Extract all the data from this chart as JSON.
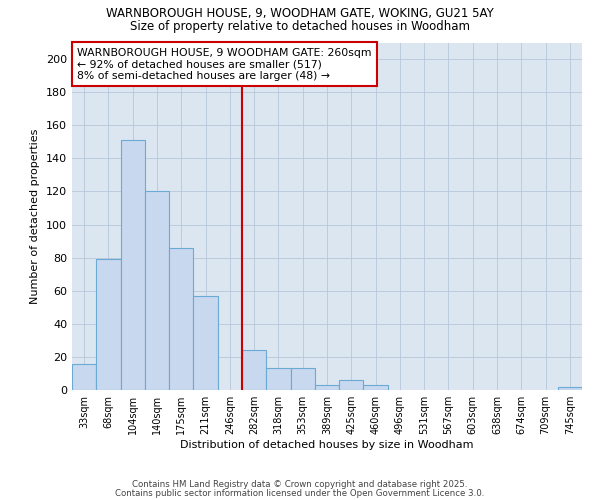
{
  "title_line1": "WARNBOROUGH HOUSE, 9, WOODHAM GATE, WOKING, GU21 5AY",
  "title_line2": "Size of property relative to detached houses in Woodham",
  "xlabel": "Distribution of detached houses by size in Woodham",
  "ylabel": "Number of detached properties",
  "bar_color": "#c8d8ee",
  "bar_edgecolor": "#6aaad4",
  "background_color": "#dce6f1",
  "bins": [
    "33sqm",
    "68sqm",
    "104sqm",
    "140sqm",
    "175sqm",
    "211sqm",
    "246sqm",
    "282sqm",
    "318sqm",
    "353sqm",
    "389sqm",
    "425sqm",
    "460sqm",
    "496sqm",
    "531sqm",
    "567sqm",
    "603sqm",
    "638sqm",
    "674sqm",
    "709sqm",
    "745sqm"
  ],
  "values": [
    16,
    79,
    151,
    120,
    86,
    57,
    0,
    24,
    13,
    13,
    3,
    6,
    3,
    0,
    0,
    0,
    0,
    0,
    0,
    0,
    2
  ],
  "red_line_color": "#cc0000",
  "annotation_text": "WARNBOROUGH HOUSE, 9 WOODHAM GATE: 260sqm\n← 92% of detached houses are smaller (517)\n8% of semi-detached houses are larger (48) →",
  "annotation_box_color": "#ffffff",
  "annotation_box_edgecolor": "#cc0000",
  "ylim": [
    0,
    210
  ],
  "yticks": [
    0,
    20,
    40,
    60,
    80,
    100,
    120,
    140,
    160,
    180,
    200
  ],
  "footer_line1": "Contains HM Land Registry data © Crown copyright and database right 2025.",
  "footer_line2": "Contains public sector information licensed under the Open Government Licence 3.0."
}
